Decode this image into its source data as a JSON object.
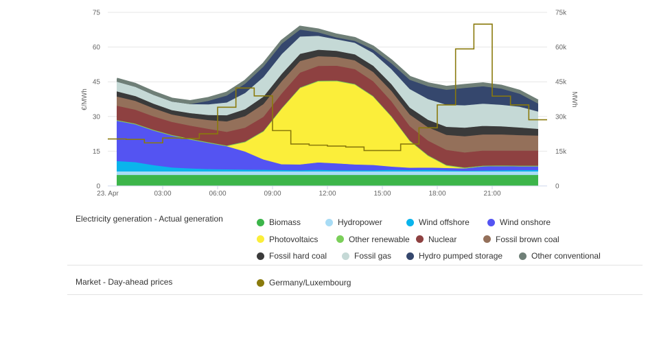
{
  "chart_data": {
    "type": "area",
    "x_start_label": "23. Apr",
    "x_ticks": [
      "03:00",
      "06:00",
      "09:00",
      "12:00",
      "15:00",
      "18:00",
      "21:00"
    ],
    "x_hours": [
      0,
      1,
      2,
      3,
      4,
      5,
      6,
      7,
      8,
      9,
      10,
      11,
      12,
      13,
      14,
      15,
      16,
      17,
      18,
      19,
      20,
      21,
      22,
      23
    ],
    "y_left": {
      "label": "€/MWh",
      "ticks": [
        "0",
        "15",
        "30",
        "45",
        "60",
        "75"
      ],
      "range": [
        0,
        75
      ]
    },
    "y_right": {
      "label": "MWh",
      "ticks": [
        "0",
        "15k",
        "30k",
        "45k",
        "60k",
        "75k"
      ],
      "range": [
        0,
        75000
      ]
    },
    "stacked_series": [
      {
        "name": "Biomass",
        "color": "#3cb54a",
        "values": [
          4800,
          4800,
          4800,
          4800,
          4800,
          4800,
          4800,
          4800,
          4800,
          4800,
          4800,
          4800,
          4800,
          4800,
          4800,
          4800,
          4800,
          4800,
          4800,
          4800,
          4800,
          4800,
          4800,
          4800
        ]
      },
      {
        "name": "Hydropower",
        "color": "#a8dcf5",
        "values": [
          1500,
          1500,
          1500,
          1500,
          1500,
          1500,
          1500,
          1500,
          1500,
          1500,
          1500,
          1500,
          1500,
          1500,
          1500,
          1500,
          1500,
          1500,
          1500,
          1500,
          1500,
          1500,
          1500,
          1500
        ]
      },
      {
        "name": "Wind offshore",
        "color": "#0ab4ec",
        "values": [
          4500,
          4000,
          2700,
          1700,
          1300,
          1000,
          900,
          800,
          700,
          600,
          500,
          700,
          500,
          500,
          500,
          700,
          600,
          700,
          500,
          300,
          400,
          500,
          600,
          600
        ]
      },
      {
        "name": "Wind onshore",
        "color": "#5454f2",
        "values": [
          17400,
          16400,
          15000,
          13800,
          12500,
          11300,
          10000,
          7800,
          4500,
          2500,
          2500,
          3200,
          3000,
          2500,
          2300,
          1400,
          1000,
          1000,
          1000,
          1000,
          1800,
          1800,
          1600,
          1600
        ]
      },
      {
        "name": "Photovoltaics",
        "color": "#fbee3a",
        "values": [
          0,
          0,
          0,
          0,
          0,
          0,
          0,
          4000,
          12000,
          24000,
          33000,
          35000,
          35500,
          34500,
          29500,
          21500,
          11500,
          5000,
          1000,
          100,
          0,
          0,
          0,
          0
        ]
      },
      {
        "name": "Other renewable",
        "color": "#7bcf5a",
        "values": [
          300,
          300,
          300,
          300,
          300,
          300,
          300,
          300,
          300,
          300,
          300,
          300,
          300,
          300,
          300,
          300,
          300,
          300,
          300,
          300,
          300,
          300,
          300,
          300
        ]
      },
      {
        "name": "Nuclear",
        "color": "#8e4141",
        "values": [
          6200,
          6000,
          5800,
          5600,
          5700,
          5800,
          5900,
          6000,
          6100,
          6300,
          6400,
          6400,
          6400,
          6400,
          6400,
          6400,
          6200,
          6300,
          6500,
          6500,
          6500,
          6400,
          6500,
          6500
        ]
      },
      {
        "name": "Fossil brown coal",
        "color": "#94705a",
        "values": [
          4000,
          3800,
          3500,
          3200,
          3400,
          3800,
          4500,
          5000,
          5500,
          5300,
          5000,
          4200,
          3800,
          3800,
          4000,
          4500,
          5000,
          5800,
          6500,
          7000,
          7000,
          7000,
          6700,
          6500
        ]
      },
      {
        "name": "Fossil hard coal",
        "color": "#3a3a3a",
        "values": [
          2200,
          2100,
          2000,
          1900,
          2000,
          2200,
          2700,
          3000,
          3200,
          3200,
          3100,
          2800,
          2600,
          2600,
          2700,
          2900,
          3000,
          3200,
          3500,
          3700,
          3700,
          3500,
          3300,
          2900
        ]
      },
      {
        "name": "Fossil gas",
        "color": "#c5d9d6",
        "values": [
          4200,
          4000,
          3800,
          3700,
          3900,
          4600,
          5500,
          7000,
          8500,
          8500,
          7500,
          6000,
          5000,
          5000,
          5500,
          6500,
          8000,
          9000,
          9500,
          9700,
          9600,
          9300,
          9000,
          7500
        ]
      },
      {
        "name": "Hydro pumped storage",
        "color": "#35476d",
        "values": [
          0,
          0,
          0,
          0,
          0,
          1500,
          3000,
          4000,
          4500,
          4500,
          3000,
          1500,
          800,
          800,
          1500,
          2500,
          4000,
          5500,
          6500,
          7500,
          7500,
          7000,
          5600,
          3500
        ]
      },
      {
        "name": "Other conventional",
        "color": "#6f7f77",
        "values": [
          1200,
          1200,
          1200,
          1200,
          1200,
          1200,
          1200,
          1200,
          1200,
          1200,
          1200,
          1200,
          1200,
          1200,
          1200,
          1200,
          1200,
          1200,
          1200,
          1200,
          1200,
          1200,
          1200,
          1200
        ]
      }
    ],
    "price_series": {
      "name": "Germany/Luxembourg",
      "color": "#8a7a0c",
      "hours": [
        0,
        1,
        2,
        3,
        4,
        5,
        6,
        7,
        8,
        9,
        10,
        11,
        12,
        13,
        14,
        15,
        16,
        17,
        18,
        19,
        20,
        21,
        22,
        23
      ],
      "values": [
        20.3,
        20.1,
        18.6,
        20.7,
        20.5,
        22.5,
        34.0,
        42.3,
        38.9,
        23.9,
        18.1,
        17.6,
        17.2,
        16.8,
        15.3,
        15.3,
        18.1,
        25.1,
        35.0,
        59.2,
        69.9,
        38.8,
        35.0,
        28.6
      ]
    },
    "grid": true,
    "legend": [
      {
        "title": "Electricity generation - Actual generation",
        "rows": [
          [
            "Biomass",
            "Hydropower",
            "Wind offshore",
            "Wind onshore"
          ],
          [
            "Photovoltaics",
            "Other renewable",
            "Nuclear",
            "Fossil brown coal"
          ],
          [
            "Fossil hard coal",
            "Fossil gas",
            "Hydro pumped storage",
            "Other conventional"
          ]
        ]
      },
      {
        "title": "Market - Day-ahead prices",
        "rows": [
          [
            "Germany/Luxembourg"
          ]
        ]
      }
    ]
  }
}
